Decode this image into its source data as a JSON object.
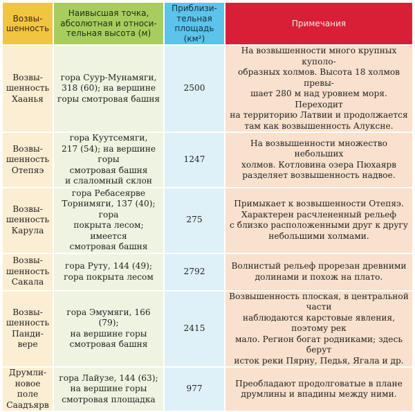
{
  "headers": [
    "Возвы-\nшенность",
    "Наивысшая точка,\nабсолютная и относи-\nтельная высота (м)",
    "Приблизи-\nтельная\nплощадь (км²)",
    "Примечания"
  ],
  "rows": [
    {
      "name": "Возвы-\nшенность\nХаанья",
      "peak": "гора Суур-Мунамяги,\n318 (60); на вершине\nгоры смотровая башня",
      "area": "2500",
      "note": "На возвышенности много крупных куполо-\nобразных холмов. Высота 18 холмов превы-\nшает 280 м над уровнем моря. Переходит\nна территорию Латвии и продолжается\nтам как возвышенность Алуксне."
    },
    {
      "name": "Возвы-\nшенность\nОтепяэ",
      "peak": "гора Куутсемяги,\n217 (54); на вершине горы\nсмотровая башня\nи слаломный склон",
      "area": "1247",
      "note": "На возвышенности множество небольших\nхолмов. Котловина озера Пюхаярв\nразделяет возвышенность надвое."
    },
    {
      "name": "Возвы-\nшенность\nКарула",
      "peak": "гора Ребасеярве\nТорнимяги, 137 (40); гора\nпокрыта лесом; имеется\nсмотровая башня",
      "area": "275",
      "note": "Примыкает к возвышенности Отепяэ.\nХарактерен расчлененный рельеф\nс близко расположенными друг к другу\nнебольшими холмами."
    },
    {
      "name": "Возвы-\nшенность\nСакала",
      "peak": "гора Руту, 144 (49);\nгора покрыта лесом",
      "area": "2792",
      "note": "Волнистый рельеф прорезан древними\nдолинами и похож на плато."
    },
    {
      "name": "Возвы-\nшенность\nПанди-\nвере",
      "peak": "гора Эмумяги, 166 (79);\nна вершине горы\nсмотровая башня",
      "area": "2415",
      "note": "Возвышенность плоская, в центральной части\nнаблюдаются карстовые явления, поэтому рек\nмало. Регион богат родниками; здесь берут\nисток реки Пярну, Педья, Ягала и др."
    },
    {
      "name": "Друмли-\nновое поле\nСаадъярв",
      "peak": "гора Лайузе, 144 (63);\nна вершине горы\nсмотровая площадка",
      "area": "977",
      "note": "Преобладают продолговатые в плане\nдрумлины и впадины между ними."
    }
  ]
}
